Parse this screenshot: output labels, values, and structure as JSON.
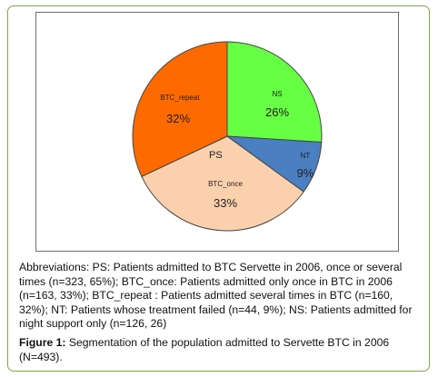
{
  "chart_data": {
    "type": "pie",
    "title": "",
    "slices": [
      {
        "name": "NS",
        "value": 26,
        "pct_label": "26%",
        "color": "#66ff44"
      },
      {
        "name": "NT",
        "value": 9,
        "pct_label": "9%",
        "color": "#4a7fc1"
      },
      {
        "name": "BTC_once",
        "value": 33,
        "pct_label": "33%",
        "color": "#fbd1ad"
      },
      {
        "name": "BTC_repeat",
        "value": 32,
        "pct_label": "32%",
        "color": "#ff6a00"
      }
    ],
    "annotation": "PS"
  },
  "caption": {
    "abbreviations": "Abbreviations: PS: Patients admitted to BTC Servette in 2006, once or several times (n=323, 65%); BTC_once: Patients admitted only once in BTC in 2006 (n=163, 33%); BTC_repeat : Patients admitted several times in BTC (n=160, 32%); NT: Patients whose treatment failed (n=44, 9%); NS: Patients admitted for night support only (n=126, 26)",
    "figure_label": "Figure 1:",
    "figure_text": "Segmentation of the population admitted to Servette BTC in 2006 (N=493)."
  },
  "colors": {
    "frame_border": "#7fa64a",
    "slice_edge": "#444444"
  }
}
